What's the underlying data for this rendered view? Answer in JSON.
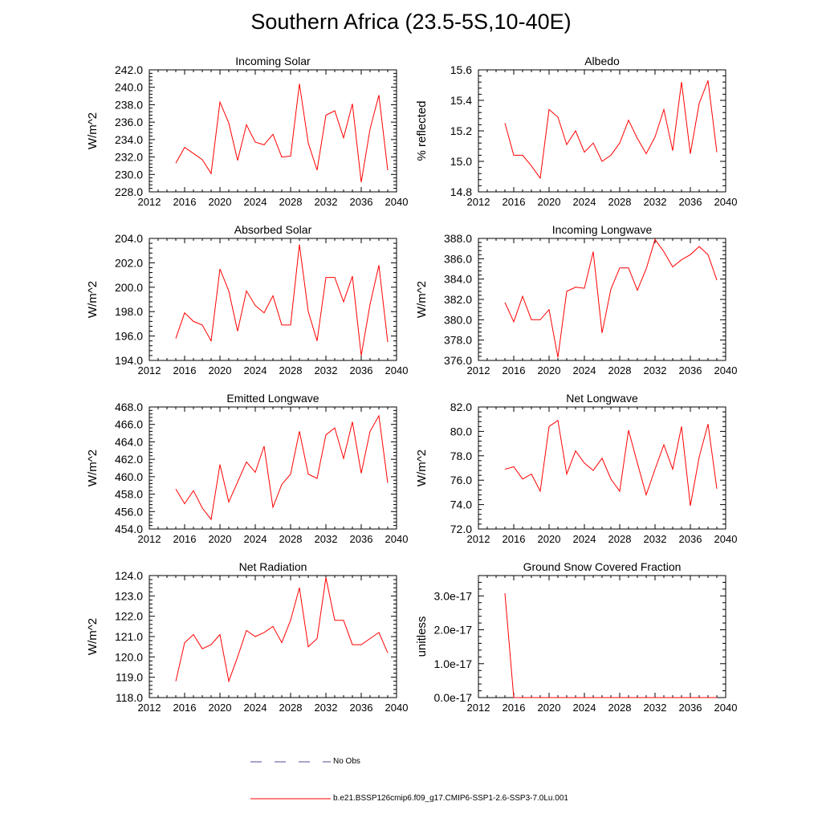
{
  "figure": {
    "title": "Southern Africa (23.5-5S,10-40E)"
  },
  "legend": {
    "obs_label": "No Obs",
    "obs_color": "#4a4a9a",
    "model_label": "b.e21.BSSP126cmip6.f09_g17.CMIP6-SSP1-2.6-SSP3-7.0Lu.001",
    "model_color": "#ff0000"
  },
  "chart_data": [
    {
      "type": "line",
      "title": "Incoming Solar",
      "ylabel": "W/m^2",
      "xlim": [
        2012,
        2040
      ],
      "ylim": [
        228,
        242
      ],
      "xticks": [
        "2012",
        "2016",
        "2020",
        "2024",
        "2028",
        "2032",
        "2036",
        "2040"
      ],
      "yticks": [
        "228.0",
        "230.0",
        "232.0",
        "234.0",
        "236.0",
        "238.0",
        "240.0",
        "242.0"
      ],
      "x": [
        2015,
        2016,
        2017,
        2018,
        2019,
        2020,
        2021,
        2022,
        2023,
        2024,
        2025,
        2026,
        2027,
        2028,
        2029,
        2030,
        2031,
        2032,
        2033,
        2034,
        2035,
        2036,
        2037,
        2038,
        2039
      ],
      "series": [
        {
          "values": [
            231.3,
            233.1,
            232.4,
            231.7,
            230.1,
            238.3,
            235.9,
            231.6,
            235.7,
            233.7,
            233.4,
            234.6,
            232.0,
            232.1,
            240.4,
            233.6,
            230.5,
            236.8,
            237.3,
            234.2,
            238.1,
            229.1,
            235.2,
            239.1,
            230.5
          ]
        }
      ]
    },
    {
      "type": "line",
      "title": "Albedo",
      "ylabel": "% reflected",
      "xlim": [
        2012,
        2040
      ],
      "ylim": [
        14.8,
        15.6
      ],
      "xticks": [
        "2012",
        "2016",
        "2020",
        "2024",
        "2028",
        "2032",
        "2036",
        "2040"
      ],
      "yticks": [
        "14.8",
        "15.0",
        "15.2",
        "15.4",
        "15.6"
      ],
      "x": [
        2015,
        2016,
        2017,
        2018,
        2019,
        2020,
        2021,
        2022,
        2023,
        2024,
        2025,
        2026,
        2027,
        2028,
        2029,
        2030,
        2031,
        2032,
        2033,
        2034,
        2035,
        2036,
        2037,
        2038,
        2039
      ],
      "series": [
        {
          "values": [
            15.25,
            15.04,
            15.04,
            14.97,
            14.89,
            15.34,
            15.29,
            15.11,
            15.2,
            15.06,
            15.12,
            15.0,
            15.04,
            15.12,
            15.27,
            15.15,
            15.05,
            15.16,
            15.34,
            15.07,
            15.52,
            15.05,
            15.38,
            15.53,
            15.06
          ]
        }
      ]
    },
    {
      "type": "line",
      "title": "Absorbed Solar",
      "ylabel": "W/m^2",
      "xlim": [
        2012,
        2040
      ],
      "ylim": [
        194,
        204
      ],
      "xticks": [
        "2012",
        "2016",
        "2020",
        "2024",
        "2028",
        "2032",
        "2036",
        "2040"
      ],
      "yticks": [
        "194.0",
        "196.0",
        "198.0",
        "200.0",
        "202.0",
        "204.0"
      ],
      "x": [
        2015,
        2016,
        2017,
        2018,
        2019,
        2020,
        2021,
        2022,
        2023,
        2024,
        2025,
        2026,
        2027,
        2028,
        2029,
        2030,
        2031,
        2032,
        2033,
        2034,
        2035,
        2036,
        2037,
        2038,
        2039
      ],
      "series": [
        {
          "values": [
            195.8,
            197.9,
            197.2,
            196.9,
            195.6,
            201.5,
            199.7,
            196.4,
            199.7,
            198.5,
            197.9,
            199.3,
            196.9,
            196.9,
            203.5,
            198.0,
            195.6,
            200.8,
            200.8,
            198.8,
            200.9,
            194.4,
            198.6,
            201.8,
            195.5
          ]
        }
      ]
    },
    {
      "type": "line",
      "title": "Incoming Longwave",
      "ylabel": "W/m^2",
      "xlim": [
        2012,
        2040
      ],
      "ylim": [
        376,
        388
      ],
      "xticks": [
        "2012",
        "2016",
        "2020",
        "2024",
        "2028",
        "2032",
        "2036",
        "2040"
      ],
      "yticks": [
        "376.0",
        "378.0",
        "380.0",
        "382.0",
        "384.0",
        "386.0",
        "388.0"
      ],
      "x": [
        2015,
        2016,
        2017,
        2018,
        2019,
        2020,
        2021,
        2022,
        2023,
        2024,
        2025,
        2026,
        2027,
        2028,
        2029,
        2030,
        2031,
        2032,
        2033,
        2034,
        2035,
        2036,
        2037,
        2038,
        2039
      ],
      "series": [
        {
          "values": [
            381.7,
            379.8,
            382.3,
            380.0,
            380.0,
            381.0,
            376.3,
            382.8,
            383.2,
            383.1,
            386.7,
            378.7,
            383.0,
            385.1,
            385.1,
            382.9,
            385.0,
            387.9,
            386.7,
            385.2,
            385.9,
            386.4,
            387.2,
            386.4,
            383.9
          ]
        }
      ]
    },
    {
      "type": "line",
      "title": "Emitted Longwave",
      "ylabel": "W/m^2",
      "xlim": [
        2012,
        2040
      ],
      "ylim": [
        454,
        468
      ],
      "xticks": [
        "2012",
        "2016",
        "2020",
        "2024",
        "2028",
        "2032",
        "2036",
        "2040"
      ],
      "yticks": [
        "454.0",
        "456.0",
        "458.0",
        "460.0",
        "462.0",
        "464.0",
        "466.0",
        "468.0"
      ],
      "x": [
        2015,
        2016,
        2017,
        2018,
        2019,
        2020,
        2021,
        2022,
        2023,
        2024,
        2025,
        2026,
        2027,
        2028,
        2029,
        2030,
        2031,
        2032,
        2033,
        2034,
        2035,
        2036,
        2037,
        2038,
        2039
      ],
      "series": [
        {
          "values": [
            458.6,
            456.9,
            458.4,
            456.4,
            455.1,
            461.4,
            457.1,
            459.4,
            461.7,
            460.5,
            463.5,
            456.5,
            459.1,
            460.3,
            465.2,
            460.3,
            459.8,
            464.8,
            465.6,
            462.1,
            466.3,
            460.4,
            465.2,
            467.0,
            459.3
          ]
        }
      ]
    },
    {
      "type": "line",
      "title": "Net Longwave",
      "ylabel": "W/m^2",
      "xlim": [
        2012,
        2040
      ],
      "ylim": [
        72,
        82
      ],
      "xticks": [
        "2012",
        "2016",
        "2020",
        "2024",
        "2028",
        "2032",
        "2036",
        "2040"
      ],
      "yticks": [
        "72.0",
        "74.0",
        "76.0",
        "78.0",
        "80.0",
        "82.0"
      ],
      "x": [
        2015,
        2016,
        2017,
        2018,
        2019,
        2020,
        2021,
        2022,
        2023,
        2024,
        2025,
        2026,
        2027,
        2028,
        2029,
        2030,
        2031,
        2032,
        2033,
        2034,
        2035,
        2036,
        2037,
        2038,
        2039
      ],
      "series": [
        {
          "values": [
            76.9,
            77.1,
            76.1,
            76.5,
            75.1,
            80.4,
            80.9,
            76.5,
            78.4,
            77.4,
            76.8,
            77.8,
            76.1,
            75.1,
            80.1,
            77.4,
            74.8,
            76.9,
            78.9,
            76.9,
            80.4,
            73.9,
            77.9,
            80.6,
            75.3
          ]
        }
      ]
    },
    {
      "type": "line",
      "title": "Net Radiation",
      "ylabel": "W/m^2",
      "xlim": [
        2012,
        2040
      ],
      "ylim": [
        118,
        124
      ],
      "xticks": [
        "2012",
        "2016",
        "2020",
        "2024",
        "2028",
        "2032",
        "2036",
        "2040"
      ],
      "yticks": [
        "118.0",
        "119.0",
        "120.0",
        "121.0",
        "122.0",
        "123.0",
        "124.0"
      ],
      "x": [
        2015,
        2016,
        2017,
        2018,
        2019,
        2020,
        2021,
        2022,
        2023,
        2024,
        2025,
        2026,
        2027,
        2028,
        2029,
        2030,
        2031,
        2032,
        2033,
        2034,
        2035,
        2036,
        2037,
        2038,
        2039
      ],
      "series": [
        {
          "values": [
            118.8,
            120.7,
            121.1,
            120.4,
            120.6,
            121.1,
            118.8,
            120.0,
            121.3,
            121.0,
            121.2,
            121.5,
            120.7,
            121.8,
            123.4,
            120.5,
            120.9,
            123.9,
            121.8,
            121.8,
            120.6,
            120.6,
            120.9,
            121.2,
            120.2
          ]
        }
      ]
    },
    {
      "type": "line",
      "title": "Ground Snow Covered Fraction",
      "ylabel": "unitless",
      "xlim": [
        2012,
        2040
      ],
      "ylim": [
        0,
        3.6e-17
      ],
      "xticks": [
        "2012",
        "2016",
        "2020",
        "2024",
        "2028",
        "2032",
        "2036",
        "2040"
      ],
      "ytick_values": [
        0,
        1e-17,
        2e-17,
        3e-17
      ],
      "yticks": [
        "0.0e-17",
        "1.0e-17",
        "2.0e-17",
        "3.0e-17"
      ],
      "x": [
        2015,
        2016,
        2017,
        2018,
        2019,
        2020,
        2021,
        2022,
        2023,
        2024,
        2025,
        2026,
        2027,
        2028,
        2029,
        2030,
        2031,
        2032,
        2033,
        2034,
        2035,
        2036,
        2037,
        2038,
        2039
      ],
      "series": [
        {
          "values": [
            3.08e-17,
            0,
            0,
            0,
            0,
            0,
            0,
            0,
            0,
            0,
            0,
            0,
            0,
            0,
            0,
            0,
            0,
            0,
            0,
            0,
            0,
            0,
            0,
            0,
            0
          ]
        }
      ]
    }
  ]
}
